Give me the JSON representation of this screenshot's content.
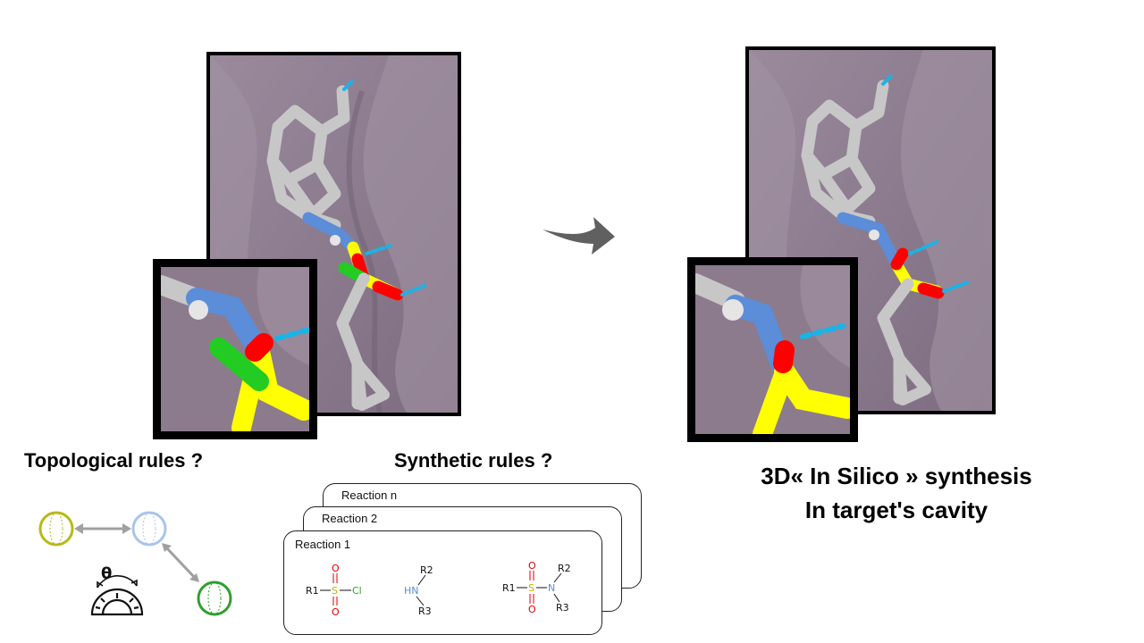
{
  "labels": {
    "topological": "Topological  rules ?",
    "synthetic": "Synthetic rules ?",
    "insilico_line1": "3D« In Silico » synthesis",
    "insilico_line2": "In target's cavity"
  },
  "reactions": [
    {
      "title": "Reaction n"
    },
    {
      "title": "Reaction 2"
    },
    {
      "title": "Reaction 1"
    }
  ],
  "chemistry": {
    "sulfonyl_chloride": {
      "r": "R1",
      "s": "S",
      "o_top": "O",
      "o_bottom": "O",
      "cl": "Cl"
    },
    "amine": {
      "n": "HN",
      "r2": "R2",
      "r3": "R3"
    },
    "sulfonamide": {
      "r1": "R1",
      "s": "S",
      "o_top": "O",
      "o_bottom": "O",
      "n": "N",
      "r2": "R2",
      "r3": "R3"
    }
  },
  "topology": {
    "angle_symbol": "θ"
  },
  "colors": {
    "surface": "#8c7b8c",
    "carbon": "#d9d9d9",
    "nitrogen": "#5b8dd9",
    "oxygen": "#ff0000",
    "sulfur": "#ffff00",
    "chlorine": "#22cc22",
    "hbond": "#18b4e8",
    "arrow": "#606060"
  }
}
